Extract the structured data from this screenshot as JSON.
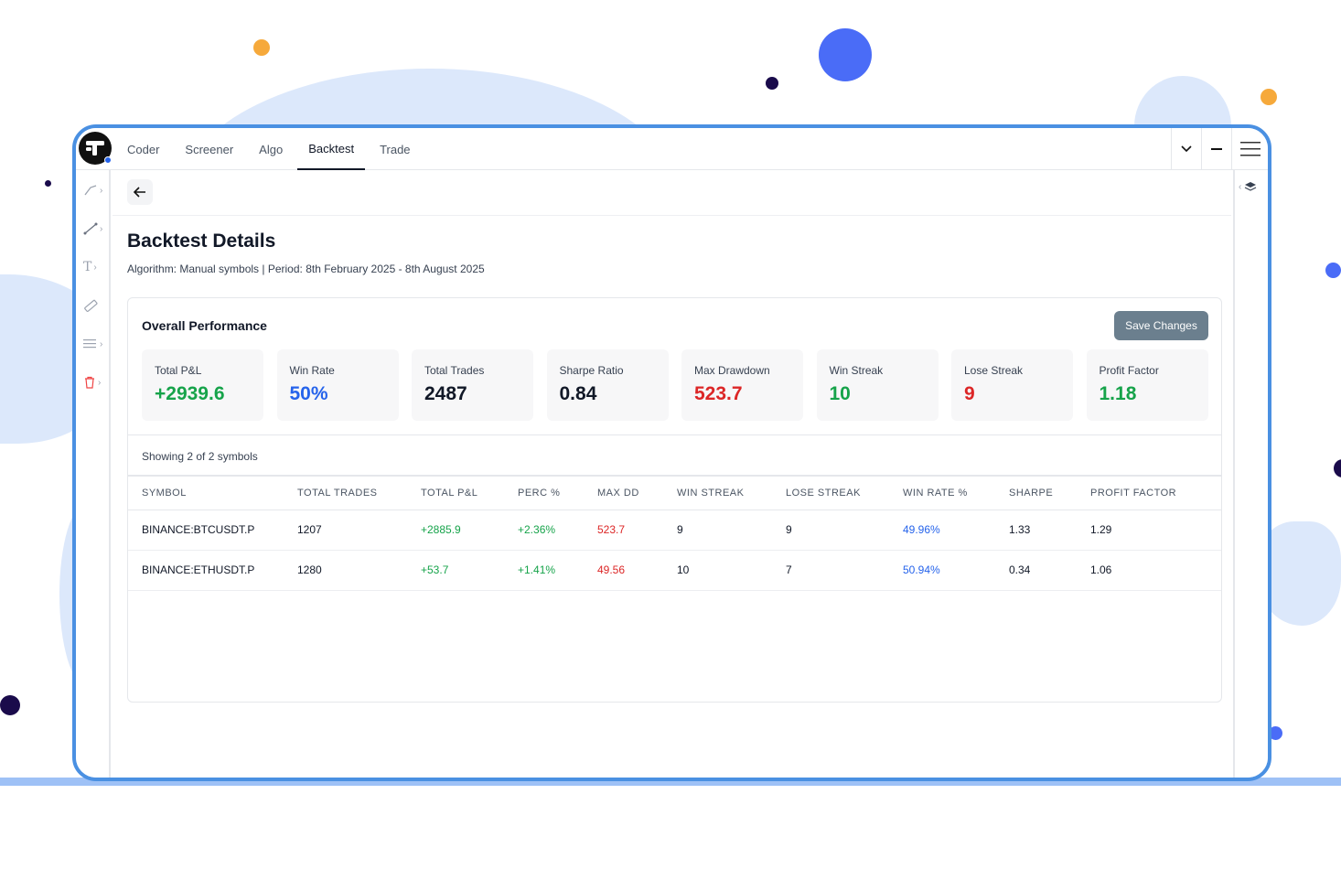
{
  "nav": {
    "tabs": [
      {
        "label": "Coder"
      },
      {
        "label": "Screener"
      },
      {
        "label": "Algo"
      },
      {
        "label": "Backtest"
      },
      {
        "label": "Trade"
      }
    ],
    "active_tab": "Backtest"
  },
  "page": {
    "title": "Backtest Details",
    "subtitle": "Algorithm: Manual symbols | Period: 8th February 2025 - 8th August 2025"
  },
  "performance": {
    "title": "Overall Performance",
    "save_label": "Save Changes",
    "metrics": [
      {
        "label": "Total P&L",
        "value": "+2939.6",
        "color": "#16a34a"
      },
      {
        "label": "Win Rate",
        "value": "50%",
        "color": "#2563eb"
      },
      {
        "label": "Total Trades",
        "value": "2487",
        "color": "#111827"
      },
      {
        "label": "Sharpe Ratio",
        "value": "0.84",
        "color": "#111827"
      },
      {
        "label": "Max Drawdown",
        "value": "523.7",
        "color": "#dc2626"
      },
      {
        "label": "Win Streak",
        "value": "10",
        "color": "#16a34a"
      },
      {
        "label": "Lose Streak",
        "value": "9",
        "color": "#dc2626"
      },
      {
        "label": "Profit Factor",
        "value": "1.18",
        "color": "#16a34a"
      }
    ]
  },
  "table": {
    "showing": "Showing 2 of 2 symbols",
    "headers": [
      "SYMBOL",
      "TOTAL TRADES",
      "TOTAL P&L",
      "PERC %",
      "MAX DD",
      "WIN STREAK",
      "LOSE STREAK",
      "WIN RATE %",
      "SHARPE",
      "PROFIT FACTOR"
    ],
    "rows": [
      [
        "BINANCE:BTCUSDT.P",
        "1207",
        "+2885.9",
        "+2.36%",
        "523.7",
        "9",
        "9",
        "49.96%",
        "1.33",
        "1.29"
      ],
      [
        "BINANCE:ETHUSDT.P",
        "1280",
        "+53.7",
        "+1.41%",
        "49.56",
        "10",
        "7",
        "50.94%",
        "0.34",
        "1.06"
      ]
    ]
  },
  "icons": {
    "logo": "app-logo-icon",
    "back": "arrow-left-icon",
    "chevron": "chevron-down-icon",
    "minimize": "minus-icon",
    "menu": "hamburger-menu-icon",
    "layers": "layers-icon"
  },
  "colors": {
    "frame": "#4a90e2",
    "positive": "#16a34a",
    "negative": "#dc2626",
    "accent": "#2563eb",
    "save_button": "#6b7f8e"
  }
}
